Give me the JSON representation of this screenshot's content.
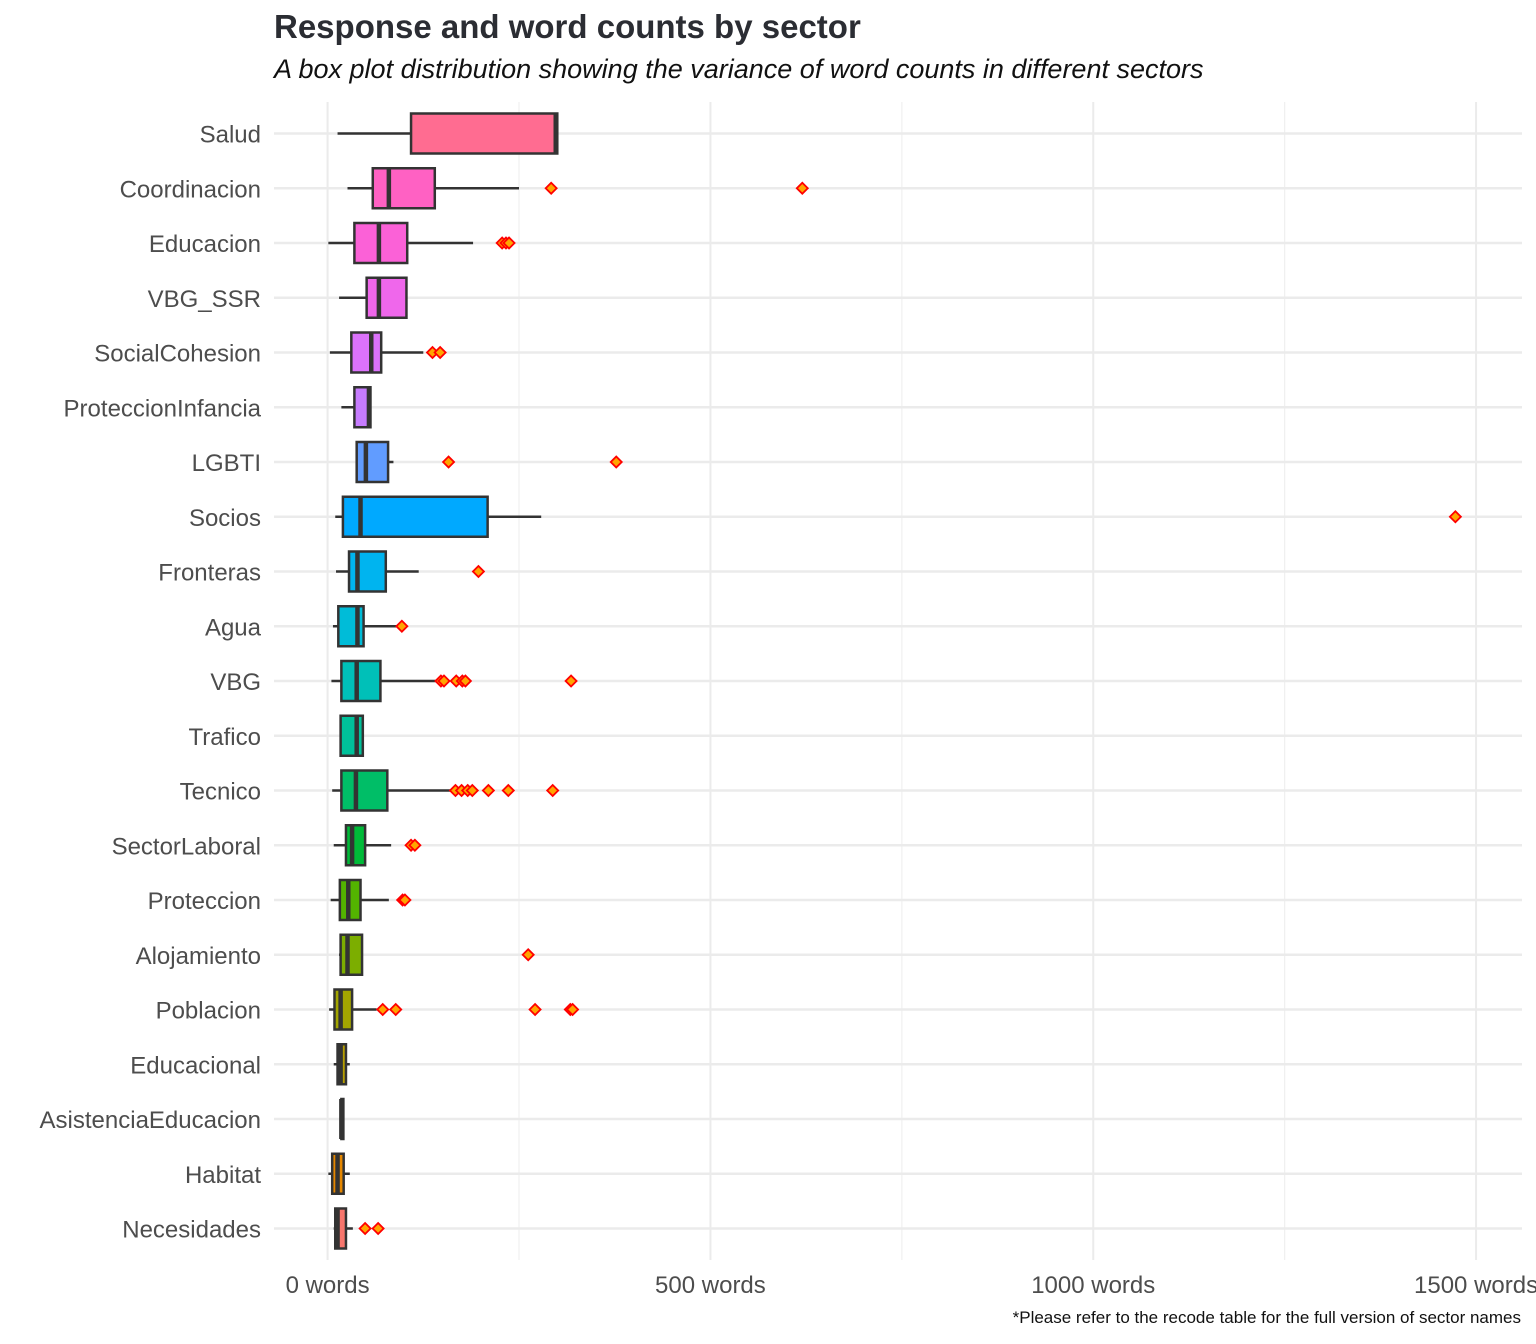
{
  "chart_data": {
    "type": "boxplot",
    "title": "Response and word counts by sector",
    "subtitle": "A box plot distribution showing the variance of word counts in different sectors",
    "caption": "*Please refer to the recode table for the full version of sector names",
    "xlabel": "",
    "ylabel": "",
    "x_ticks": [
      {
        "value": 0,
        "label": "0 words"
      },
      {
        "value": 500,
        "label": "500 words"
      },
      {
        "value": 1000,
        "label": "1000 words"
      },
      {
        "value": 1500,
        "label": "1500 words"
      }
    ],
    "xlim": [
      -70,
      1560
    ],
    "grid": true,
    "legend": "none",
    "outlier_fill": "#ffa500",
    "outlier_stroke": "#ff0000",
    "box_stroke": "#333333",
    "categories": [
      {
        "name": "Salud",
        "color": "#ff6c91",
        "whisker_low": 13,
        "q1": 109,
        "median": 298,
        "q3": 300,
        "whisker_high": 300,
        "outliers": []
      },
      {
        "name": "Coordinacion",
        "color": "#ff61c3",
        "whisker_low": 26,
        "q1": 59,
        "median": 80,
        "q3": 140,
        "whisker_high": 250,
        "outliers": [
          292,
          620
        ]
      },
      {
        "name": "Educacion",
        "color": "#fb61d7",
        "whisker_low": 1,
        "q1": 35,
        "median": 67,
        "q3": 104,
        "whisker_high": 190,
        "outliers": [
          228,
          233,
          237
        ]
      },
      {
        "name": "VBG_SSR",
        "color": "#ef67eb",
        "whisker_low": 15,
        "q1": 51,
        "median": 67,
        "q3": 103,
        "whisker_high": 103,
        "outliers": []
      },
      {
        "name": "SocialCohesion",
        "color": "#db72fb",
        "whisker_low": 3,
        "q1": 31,
        "median": 57,
        "q3": 70,
        "whisker_high": 125,
        "outliers": [
          137,
          147
        ]
      },
      {
        "name": "ProteccionInfancia",
        "color": "#c77cff",
        "whisker_low": 18,
        "q1": 35,
        "median": 54,
        "q3": 56,
        "whisker_high": 56,
        "outliers": []
      },
      {
        "name": "LGBTI",
        "color": "#619cff",
        "whisker_low": 37,
        "q1": 38,
        "median": 50,
        "q3": 79,
        "whisker_high": 86,
        "outliers": [
          158,
          377
        ]
      },
      {
        "name": "Socios",
        "color": "#00a9ff",
        "whisker_low": 10,
        "q1": 20,
        "median": 43,
        "q3": 209,
        "whisker_high": 279,
        "outliers": [
          1473
        ]
      },
      {
        "name": "Fronteras",
        "color": "#00b4ef",
        "whisker_low": 11,
        "q1": 28,
        "median": 39,
        "q3": 76,
        "whisker_high": 119,
        "outliers": [
          197
        ]
      },
      {
        "name": "Agua",
        "color": "#00bcd8",
        "whisker_low": 7,
        "q1": 14,
        "median": 39,
        "q3": 47,
        "whisker_high": 95,
        "outliers": [
          97
        ]
      },
      {
        "name": "VBG",
        "color": "#00c0b8",
        "whisker_low": 5,
        "q1": 18,
        "median": 38,
        "q3": 69,
        "whisker_high": 143,
        "outliers": [
          148,
          152,
          168,
          176,
          180,
          318
        ]
      },
      {
        "name": "Trafico",
        "color": "#00c19a",
        "whisker_low": 16,
        "q1": 17,
        "median": 38,
        "q3": 46,
        "whisker_high": 47,
        "outliers": []
      },
      {
        "name": "Tecnico",
        "color": "#00be67",
        "whisker_low": 6,
        "q1": 18,
        "median": 37,
        "q3": 78,
        "whisker_high": 165,
        "outliers": [
          167,
          175,
          183,
          189,
          210,
          236,
          294
        ]
      },
      {
        "name": "SectorLaboral",
        "color": "#00ba38",
        "whisker_low": 8,
        "q1": 24,
        "median": 32,
        "q3": 49,
        "whisker_high": 83,
        "outliers": [
          109,
          114
        ]
      },
      {
        "name": "Proteccion",
        "color": "#53b400",
        "whisker_low": 4,
        "q1": 16,
        "median": 27,
        "q3": 43,
        "whisker_high": 80,
        "outliers": [
          98,
          101
        ]
      },
      {
        "name": "Alojamiento",
        "color": "#7cae00",
        "whisker_low": 15,
        "q1": 17,
        "median": 26,
        "q3": 45,
        "whisker_high": 46,
        "outliers": [
          262
        ]
      },
      {
        "name": "Poblacion",
        "color": "#a3a500",
        "whisker_low": 2,
        "q1": 9,
        "median": 17,
        "q3": 32,
        "whisker_high": 64,
        "outliers": [
          72,
          89,
          271,
          317,
          320
        ]
      },
      {
        "name": "Educacional",
        "color": "#b79f00",
        "whisker_low": 8,
        "q1": 13,
        "median": 17,
        "q3": 24,
        "whisker_high": 29,
        "outliers": []
      },
      {
        "name": "AsistenciaEducacion",
        "color": "#c99800",
        "whisker_low": 17,
        "q1": 18,
        "median": 18,
        "q3": 19,
        "whisker_high": 20,
        "outliers": []
      },
      {
        "name": "Habitat",
        "color": "#e58700",
        "whisker_low": 1,
        "q1": 6,
        "median": 13,
        "q3": 21,
        "whisker_high": 29,
        "outliers": []
      },
      {
        "name": "Necesidades",
        "color": "#f8766d",
        "whisker_low": 8,
        "q1": 10,
        "median": 13,
        "q3": 24,
        "whisker_high": 33,
        "outliers": [
          49,
          66
        ]
      }
    ]
  }
}
